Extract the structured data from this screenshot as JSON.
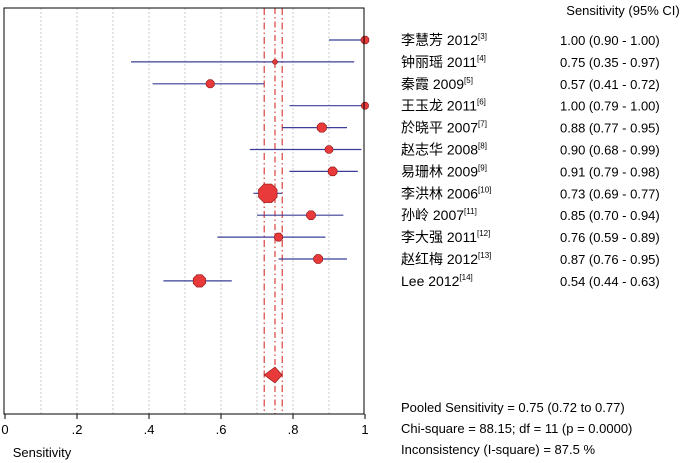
{
  "chart_data": {
    "type": "forest",
    "header": "Sensitivity (95% CI)",
    "xlabel": "Sensitivity",
    "xlim": [
      0,
      1
    ],
    "xticks": [
      "0",
      ".2",
      ".4",
      ".6",
      ".8",
      "1"
    ],
    "xtick_values": [
      0,
      0.2,
      0.4,
      0.6,
      0.8,
      1.0
    ],
    "grid": true,
    "colors": {
      "marker": "#e8393b",
      "ci_line": "#3b3f99",
      "pooled_line": "#d9302b",
      "grid": "#c8c8c8"
    },
    "studies": [
      {
        "name": "李慧芳 2012",
        "ref": "[3]",
        "value": 1.0,
        "lo": 0.9,
        "hi": 1.0,
        "ci_text": "1.00 (0.90 - 1.00)",
        "weight": 1.0
      },
      {
        "name": "钟丽瑶 2011",
        "ref": "[4]",
        "value": 0.75,
        "lo": 0.35,
        "hi": 0.97,
        "ci_text": "0.75 (0.35 - 0.97)",
        "weight": 0.6
      },
      {
        "name": "秦霞 2009",
        "ref": "[5]",
        "value": 0.57,
        "lo": 0.41,
        "hi": 0.72,
        "ci_text": "0.57 (0.41 - 0.72)",
        "weight": 1.05
      },
      {
        "name": "王玉龙 2011",
        "ref": "[6]",
        "value": 1.0,
        "lo": 0.79,
        "hi": 1.0,
        "ci_text": "1.00 (0.79 - 1.00)",
        "weight": 0.9
      },
      {
        "name": "於晓平 2007",
        "ref": "[7]",
        "value": 0.88,
        "lo": 0.77,
        "hi": 0.95,
        "ci_text": "0.88 (0.77 - 0.95)",
        "weight": 1.2
      },
      {
        "name": "赵志华 2008",
        "ref": "[8]",
        "value": 0.9,
        "lo": 0.68,
        "hi": 0.99,
        "ci_text": "0.90 (0.68 - 0.99)",
        "weight": 1.0
      },
      {
        "name": "易珊林 2009",
        "ref": "[9]",
        "value": 0.91,
        "lo": 0.79,
        "hi": 0.98,
        "ci_text": "0.91 (0.79 - 0.98)",
        "weight": 1.15
      },
      {
        "name": "李洪林 2006",
        "ref": "[10]",
        "value": 0.73,
        "lo": 0.69,
        "hi": 0.77,
        "ci_text": "0.73 (0.69 - 0.77)",
        "weight": 2.4
      },
      {
        "name": "孙岭 2007",
        "ref": "[11]",
        "value": 0.85,
        "lo": 0.7,
        "hi": 0.94,
        "ci_text": "0.85 (0.70 - 0.94)",
        "weight": 1.15
      },
      {
        "name": "李大强 2011",
        "ref": "[12]",
        "value": 0.76,
        "lo": 0.59,
        "hi": 0.89,
        "ci_text": "0.76 (0.59 - 0.89)",
        "weight": 1.05
      },
      {
        "name": "赵红梅 2012",
        "ref": "[13]",
        "value": 0.87,
        "lo": 0.76,
        "hi": 0.95,
        "ci_text": "0.87 (0.76 - 0.95)",
        "weight": 1.15
      },
      {
        "name": "Lee 2012",
        "ref": "[14]",
        "value": 0.54,
        "lo": 0.44,
        "hi": 0.63,
        "ci_text": "0.54 (0.44 - 0.63)",
        "weight": 1.6
      }
    ],
    "pooled": {
      "value": 0.75,
      "lo": 0.72,
      "hi": 0.77
    },
    "stats": [
      "Pooled Sensitivity = 0.75 (0.72 to 0.77)",
      "Chi-square = 88.15; df = 11 (p = 0.0000)",
      "Inconsistency (I-square) = 87.5 %"
    ]
  }
}
